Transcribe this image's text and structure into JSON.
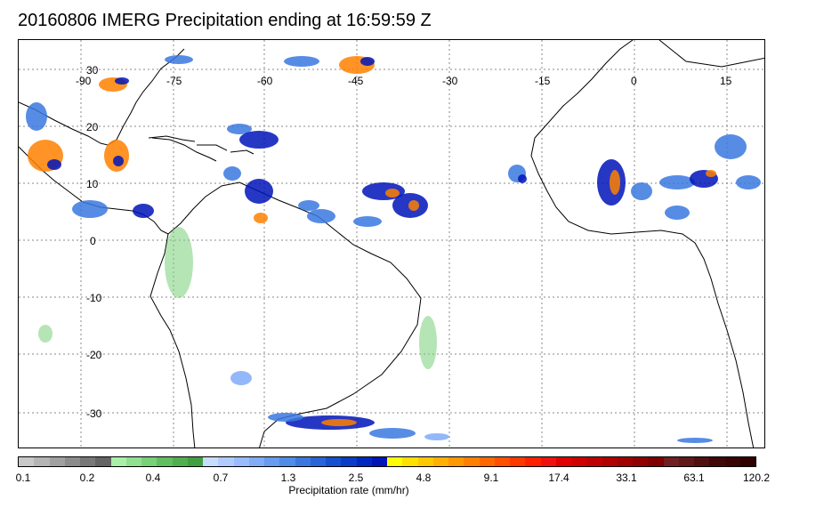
{
  "title": "20160806 IMERG Precipitation ending at 16:59:59 Z",
  "map": {
    "longitude_labels": [
      "-90",
      "-75",
      "-60",
      "-45",
      "-30",
      "-15",
      "0",
      "15"
    ],
    "latitude_labels": [
      "30",
      "20",
      "10",
      "0",
      "-10",
      "-20",
      "-30"
    ],
    "land_color": "#ffffff",
    "coast_color": "#000000",
    "grid_style": "dotted"
  },
  "colorbar": {
    "label": "Precipitation rate (mm/hr)",
    "tick_labels": [
      "0.1",
      "0.2",
      "0.4",
      "0.7",
      "1.3",
      "2.5",
      "4.8",
      "9.1",
      "17.4",
      "33.1",
      "63.1",
      "120.2"
    ],
    "colors": [
      "#c8c8c8",
      "#b4b4b4",
      "#a0a0a0",
      "#8c8c8c",
      "#787878",
      "#646464",
      "#a8f0a8",
      "#90e090",
      "#78d078",
      "#60c060",
      "#50b050",
      "#40a040",
      "#c8dcff",
      "#b0ccff",
      "#98bcff",
      "#80acf8",
      "#689cf0",
      "#508ce8",
      "#3a78e0",
      "#2864d8",
      "#1450d0",
      "#0a3cc8",
      "#0028c0",
      "#0014b8",
      "#ffff00",
      "#ffe000",
      "#ffc800",
      "#ffb000",
      "#ff9800",
      "#ff8000",
      "#ff6800",
      "#ff5000",
      "#ff3800",
      "#ff2000",
      "#f01010",
      "#e00000",
      "#d00000",
      "#c00000",
      "#b00000",
      "#a00000",
      "#900000",
      "#800000",
      "#702020",
      "#601818",
      "#501010",
      "#400808",
      "#380404",
      "#300000"
    ]
  }
}
